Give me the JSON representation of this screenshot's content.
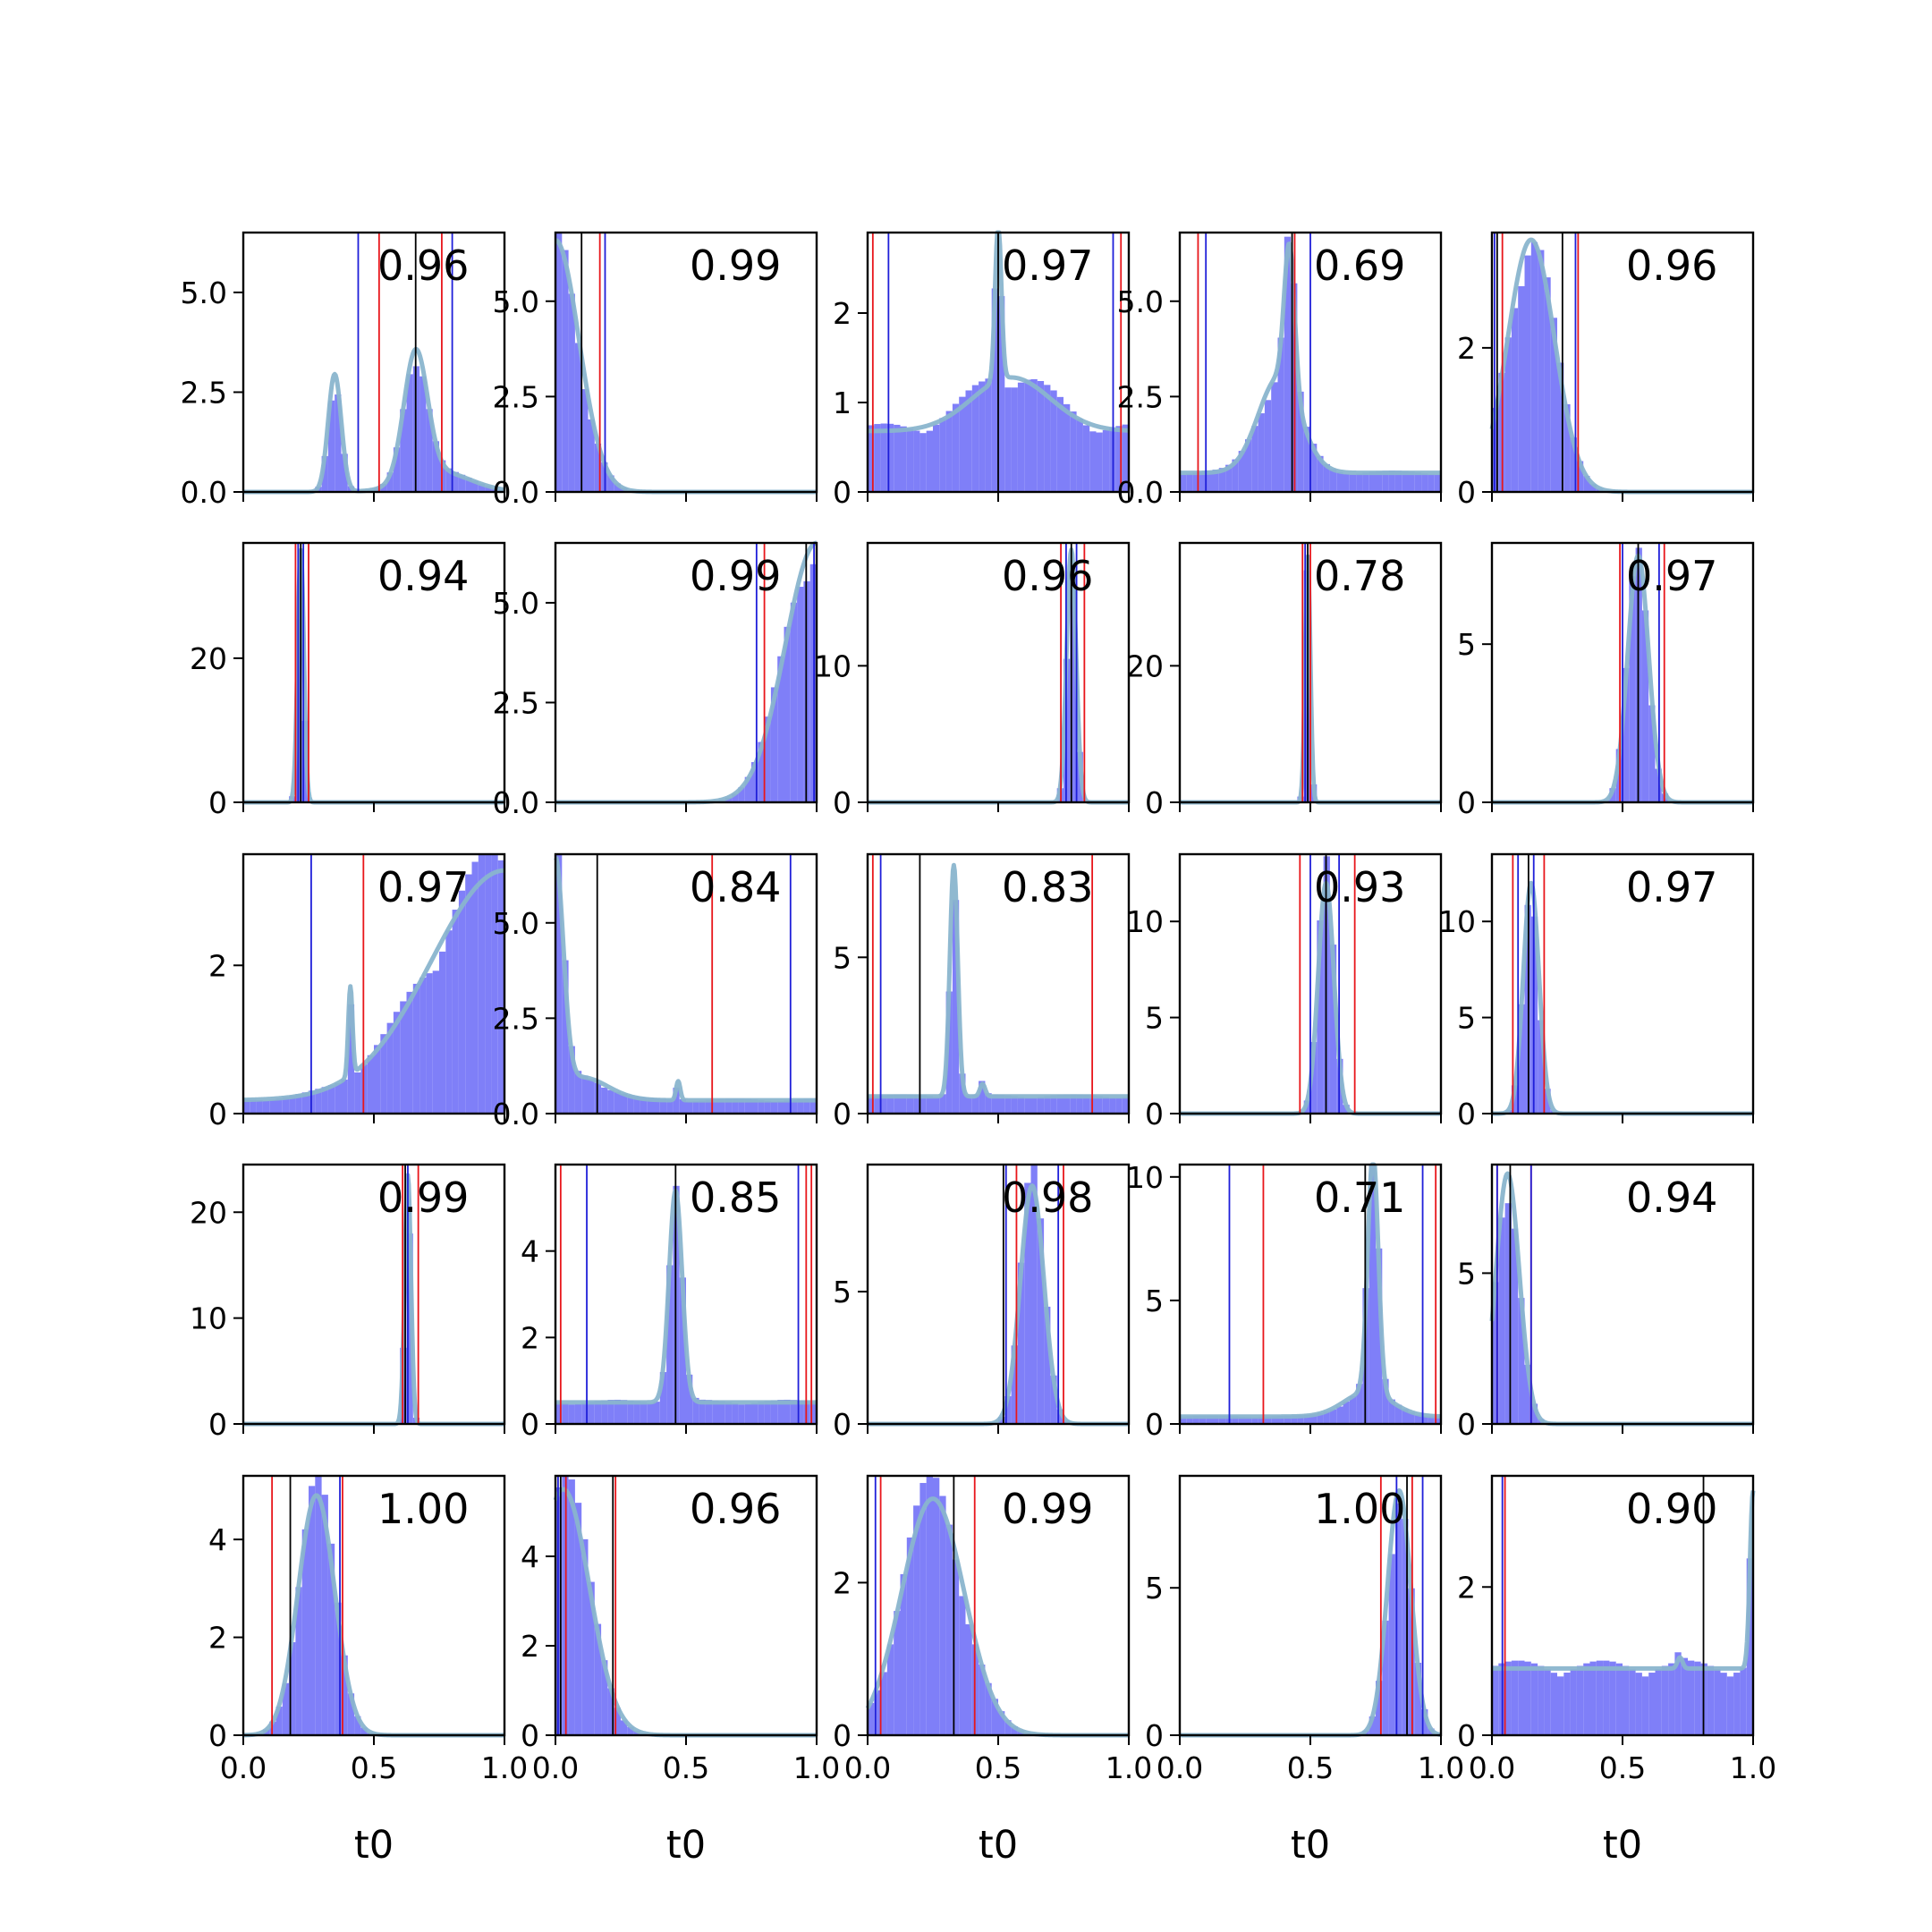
{
  "colors": {
    "hist_fill": "#7f7ff8",
    "density_line": "#8ab5cd",
    "red_line": "#e8161b",
    "blue_line": "#1f1fd9",
    "black_line": "#000000",
    "frame": "#000000"
  },
  "chart_data": {
    "type": "histogram-grid",
    "rows": 5,
    "cols": 5,
    "xlabel": "t0",
    "xlim": [
      0,
      1
    ],
    "x_ticks": [
      0.0,
      0.5,
      1.0
    ],
    "x_tick_labels": [
      "0.0",
      "0.5",
      "1.0"
    ],
    "panels": [
      {
        "score": "0.96",
        "ylim": [
          0,
          6.5
        ],
        "y_ticks": [
          0.0,
          2.5,
          5.0
        ],
        "y_tick_labels": [
          "0.0",
          "2.5",
          "5.0"
        ],
        "black": [
          0.66
        ],
        "red": [
          0.52,
          0.76
        ],
        "blue": [
          0.44,
          0.8
        ],
        "shape": [
          [
            0.35,
            0.025,
            2.95
          ],
          [
            0.66,
            0.045,
            3.2
          ],
          [
            0.75,
            0.12,
            0.5
          ]
        ],
        "baseline": 0.0
      },
      {
        "score": "0.99",
        "ylim": [
          0,
          6.8
        ],
        "y_ticks": [
          0.0,
          2.5,
          5.0
        ],
        "y_tick_labels": [
          "0.0",
          "2.5",
          "5.0"
        ],
        "black": [
          0.1
        ],
        "red": [
          0.17
        ],
        "blue": [
          0.19
        ],
        "shape": [
          [
            0.0,
            0.09,
            6.6
          ]
        ],
        "baseline": 0.0
      },
      {
        "score": "0.97",
        "ylim": [
          0,
          2.9
        ],
        "y_ticks": [
          0,
          1,
          2
        ],
        "y_tick_labels": [
          "0",
          "1",
          "2"
        ],
        "black": [
          0.5
        ],
        "red": [
          0.02,
          0.97
        ],
        "blue": [
          0.08,
          0.94
        ],
        "shape": [
          [
            0.5,
            0.012,
            1.75
          ],
          [
            0.55,
            0.15,
            0.6
          ]
        ],
        "baseline": 0.68
      },
      {
        "score": "0.69",
        "ylim": [
          0,
          6.8
        ],
        "y_ticks": [
          0.0,
          2.5,
          5.0
        ],
        "y_tick_labels": [
          "0.0",
          "2.5",
          "5.0"
        ],
        "black": [
          0.43
        ],
        "red": [
          0.07,
          0.44
        ],
        "blue": [
          0.1,
          0.5
        ],
        "shape": [
          [
            0.42,
            0.02,
            3.8
          ],
          [
            0.38,
            0.08,
            2.5
          ]
        ],
        "baseline": 0.5
      },
      {
        "score": "0.96",
        "ylim": [
          0,
          3.6
        ],
        "y_ticks": [
          0,
          2
        ],
        "y_tick_labels": [
          "0",
          "2"
        ],
        "black": [
          0.02,
          0.27
        ],
        "red": [
          0.04,
          0.33
        ],
        "blue": [
          0.01,
          0.32
        ],
        "shape": [
          [
            0.15,
            0.09,
            3.5
          ]
        ],
        "baseline": 0.0
      },
      {
        "score": "0.94",
        "ylim": [
          0,
          36
        ],
        "y_ticks": [
          0,
          20
        ],
        "y_tick_labels": [
          "0",
          "20"
        ],
        "black": [
          0.22
        ],
        "red": [
          0.2,
          0.25
        ],
        "blue": [
          0.21,
          0.23
        ],
        "shape": [
          [
            0.22,
            0.012,
            35
          ]
        ],
        "baseline": 0.0
      },
      {
        "score": "0.99",
        "ylim": [
          0,
          6.5
        ],
        "y_ticks": [
          0.0,
          2.5,
          5.0
        ],
        "y_tick_labels": [
          "0.0",
          "2.5",
          "5.0"
        ],
        "black": [
          0.96
        ],
        "red": [
          0.8
        ],
        "blue": [
          0.77,
          0.99
        ],
        "shape": [
          [
            1.0,
            0.12,
            6.5
          ]
        ],
        "baseline": 0.0
      },
      {
        "score": "0.96",
        "ylim": [
          0,
          19
        ],
        "y_ticks": [
          0,
          10
        ],
        "y_tick_labels": [
          "0",
          "10"
        ],
        "black": [
          0.78
        ],
        "red": [
          0.74,
          0.83
        ],
        "blue": [
          0.76,
          0.8
        ],
        "shape": [
          [
            0.78,
            0.018,
            18.5
          ]
        ],
        "baseline": 0.0
      },
      {
        "score": "0.78",
        "ylim": [
          0,
          38
        ],
        "y_ticks": [
          0,
          20
        ],
        "y_tick_labels": [
          "0",
          "20"
        ],
        "black": [
          0.49
        ],
        "red": [
          0.47,
          0.5
        ],
        "blue": [
          0.48
        ],
        "shape": [
          [
            0.49,
            0.01,
            36
          ]
        ],
        "baseline": 0.0
      },
      {
        "score": "0.97",
        "ylim": [
          0,
          8.2
        ],
        "y_ticks": [
          0,
          5
        ],
        "y_tick_labels": [
          "0",
          "5"
        ],
        "black": [
          0.56
        ],
        "red": [
          0.49,
          0.66
        ],
        "blue": [
          0.5,
          0.64
        ],
        "shape": [
          [
            0.56,
            0.04,
            7.8
          ]
        ],
        "baseline": 0.0
      },
      {
        "score": "0.97",
        "ylim": [
          0,
          3.5
        ],
        "y_ticks": [
          0,
          2
        ],
        "y_tick_labels": [
          "0",
          "2"
        ],
        "black": [
          1.0
        ],
        "red": [
          0.46
        ],
        "blue": [
          0.26
        ],
        "shape": [
          [
            1.0,
            0.28,
            3.1
          ],
          [
            0.41,
            0.008,
            1.2
          ]
        ],
        "baseline": 0.18
      },
      {
        "score": "0.84",
        "ylim": [
          0,
          6.8
        ],
        "y_ticks": [
          0.0,
          2.5,
          5.0
        ],
        "y_tick_labels": [
          "0.0",
          "2.5",
          "5.0"
        ],
        "black": [
          0.16
        ],
        "red": [
          0.6
        ],
        "blue": [
          0.9
        ],
        "shape": [
          [
            0.0,
            0.03,
            6.0
          ],
          [
            0.47,
            0.008,
            0.5
          ],
          [
            0.1,
            0.1,
            0.6
          ]
        ],
        "baseline": 0.35
      },
      {
        "score": "0.83",
        "ylim": [
          0,
          8.3
        ],
        "y_ticks": [
          0,
          5
        ],
        "y_tick_labels": [
          "0",
          "5"
        ],
        "black": [
          0.2
        ],
        "red": [
          0.02,
          0.86
        ],
        "blue": [
          0.05,
          1.0
        ],
        "shape": [
          [
            0.33,
            0.015,
            7.4
          ],
          [
            0.44,
            0.01,
            0.4
          ]
        ],
        "baseline": 0.55
      },
      {
        "score": "0.93",
        "ylim": [
          0,
          13.5
        ],
        "y_ticks": [
          0,
          5,
          10
        ],
        "y_tick_labels": [
          "0",
          "5",
          "10"
        ],
        "black": [
          0.56
        ],
        "red": [
          0.46,
          0.67
        ],
        "blue": [
          0.5,
          0.61
        ],
        "shape": [
          [
            0.56,
            0.03,
            12
          ]
        ],
        "baseline": 0.0
      },
      {
        "score": "0.97",
        "ylim": [
          0,
          13.5
        ],
        "y_ticks": [
          0,
          5,
          10
        ],
        "y_tick_labels": [
          "0",
          "5",
          "10"
        ],
        "black": [
          0.14
        ],
        "red": [
          0.08,
          0.2
        ],
        "blue": [
          0.1,
          0.16
        ],
        "shape": [
          [
            0.15,
            0.03,
            12
          ]
        ],
        "baseline": 0.0
      },
      {
        "score": "0.99",
        "ylim": [
          0,
          24.5
        ],
        "y_ticks": [
          0,
          10,
          20
        ],
        "y_tick_labels": [
          "0",
          "10",
          "20"
        ],
        "black": [
          0.62
        ],
        "red": [
          0.61,
          0.67
        ],
        "blue": [
          0.63
        ],
        "shape": [
          [
            0.63,
            0.012,
            23.5
          ]
        ],
        "baseline": 0.0
      },
      {
        "score": "0.85",
        "ylim": [
          0,
          6.0
        ],
        "y_ticks": [
          0,
          2,
          4
        ],
        "y_tick_labels": [
          "0",
          "2",
          "4"
        ],
        "black": [
          0.46
        ],
        "red": [
          0.02,
          0.96,
          0.98
        ],
        "blue": [
          0.12,
          0.93
        ],
        "shape": [
          [
            0.46,
            0.025,
            4.9
          ]
        ],
        "baseline": 0.5
      },
      {
        "score": "0.98",
        "ylim": [
          0,
          9.8
        ],
        "y_ticks": [
          0,
          5
        ],
        "y_tick_labels": [
          "0",
          "5"
        ],
        "black": [
          0.52
        ],
        "red": [
          0.57,
          0.75
        ],
        "blue": [
          0.53,
          0.73
        ],
        "shape": [
          [
            0.63,
            0.045,
            9.0
          ]
        ],
        "baseline": 0.0
      },
      {
        "score": "0.71",
        "ylim": [
          0,
          10.5
        ],
        "y_ticks": [
          0,
          5,
          10
        ],
        "y_tick_labels": [
          "0",
          "5",
          "10"
        ],
        "black": [
          0.71
        ],
        "red": [
          0.32,
          0.98
        ],
        "blue": [
          0.19,
          0.93
        ],
        "shape": [
          [
            0.74,
            0.02,
            9.7
          ],
          [
            0.72,
            0.09,
            1.0
          ]
        ],
        "baseline": 0.3
      },
      {
        "score": "0.94",
        "ylim": [
          0,
          8.6
        ],
        "y_ticks": [
          0,
          5
        ],
        "y_tick_labels": [
          "0",
          "5"
        ],
        "black": [
          0.07
        ],
        "red": [
          0.02,
          0.15
        ],
        "blue": [
          0.02,
          0.15
        ],
        "shape": [
          [
            0.06,
            0.045,
            8.3
          ]
        ],
        "baseline": 0.0
      },
      {
        "score": "1.00",
        "ylim": [
          0,
          5.3
        ],
        "y_ticks": [
          0,
          2,
          4
        ],
        "y_tick_labels": [
          "0",
          "2",
          "4"
        ],
        "black": [
          0.18
        ],
        "red": [
          0.11,
          0.38
        ],
        "blue": [
          0.37
        ],
        "shape": [
          [
            0.28,
            0.07,
            4.9
          ]
        ],
        "baseline": 0.0
      },
      {
        "score": "0.96",
        "ylim": [
          0,
          5.8
        ],
        "y_ticks": [
          0,
          2,
          4
        ],
        "y_tick_labels": [
          "0",
          "2",
          "4"
        ],
        "black": [
          0.02,
          0.22
        ],
        "red": [
          0.04,
          0.23
        ],
        "blue": [
          0.01
        ],
        "shape": [
          [
            0.03,
            0.1,
            5.5
          ]
        ],
        "baseline": 0.0
      },
      {
        "score": "0.99",
        "ylim": [
          0,
          3.4
        ],
        "y_ticks": [
          0,
          2
        ],
        "y_tick_labels": [
          "0",
          "2"
        ],
        "black": [
          0.33
        ],
        "red": [
          0.05,
          0.41
        ],
        "blue": [
          0.03
        ],
        "shape": [
          [
            0.25,
            0.12,
            3.1
          ]
        ],
        "baseline": 0.0
      },
      {
        "score": "1.00",
        "ylim": [
          0,
          8.8
        ],
        "y_ticks": [
          0,
          5
        ],
        "y_tick_labels": [
          "0",
          "5"
        ],
        "black": [
          0.87
        ],
        "red": [
          0.77,
          0.89
        ],
        "blue": [
          0.83,
          0.93
        ],
        "shape": [
          [
            0.84,
            0.045,
            8.3
          ]
        ],
        "baseline": 0.0
      },
      {
        "score": "0.90",
        "ylim": [
          0,
          3.5
        ],
        "y_ticks": [
          0,
          2
        ],
        "y_tick_labels": [
          "0",
          "2"
        ],
        "black": [
          0.81,
          1.0
        ],
        "red": [
          0.05
        ],
        "blue": [
          0.04
        ],
        "shape": [
          [
            1.0,
            0.012,
            2.4
          ],
          [
            0.72,
            0.01,
            0.15
          ]
        ],
        "baseline": 0.9
      }
    ]
  }
}
